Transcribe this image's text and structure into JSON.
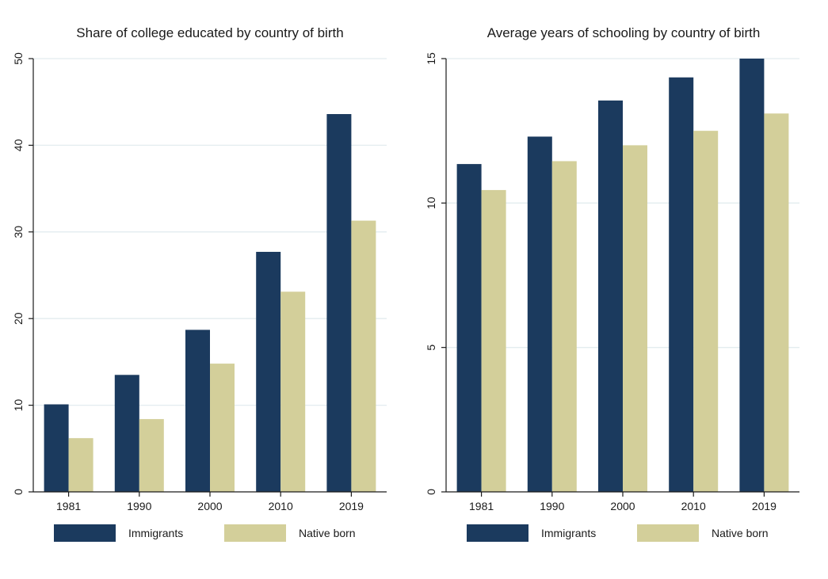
{
  "colors": {
    "immigrants": "#1b3a5e",
    "native_born": "#d3cf9a",
    "grid": "#e3ecef"
  },
  "chart_data": [
    {
      "type": "bar",
      "title": "Share of college educated by country of birth",
      "categories": [
        "1981",
        "1990",
        "2000",
        "2010",
        "2019"
      ],
      "series": [
        {
          "name": "Immigrants",
          "values": [
            10.1,
            13.5,
            18.7,
            27.7,
            43.6
          ]
        },
        {
          "name": "Native born",
          "values": [
            6.2,
            8.4,
            14.8,
            23.1,
            31.3
          ]
        }
      ],
      "ylim": [
        0,
        50
      ],
      "yticks": [
        "0",
        "10",
        "20",
        "30",
        "40",
        "50"
      ],
      "grid": true,
      "legend": "bottom"
    },
    {
      "type": "bar",
      "title": "Average years of schooling by country of birth",
      "categories": [
        "1981",
        "1990",
        "2000",
        "2010",
        "2019"
      ],
      "series": [
        {
          "name": "Immigrants",
          "values": [
            11.35,
            12.3,
            13.55,
            14.35,
            15.0
          ]
        },
        {
          "name": "Native born",
          "values": [
            10.45,
            11.45,
            12.0,
            12.5,
            13.1
          ]
        }
      ],
      "ylim": [
        0,
        15
      ],
      "yticks": [
        "0",
        "5",
        "10",
        "15"
      ],
      "grid": true,
      "legend": "bottom"
    }
  ]
}
